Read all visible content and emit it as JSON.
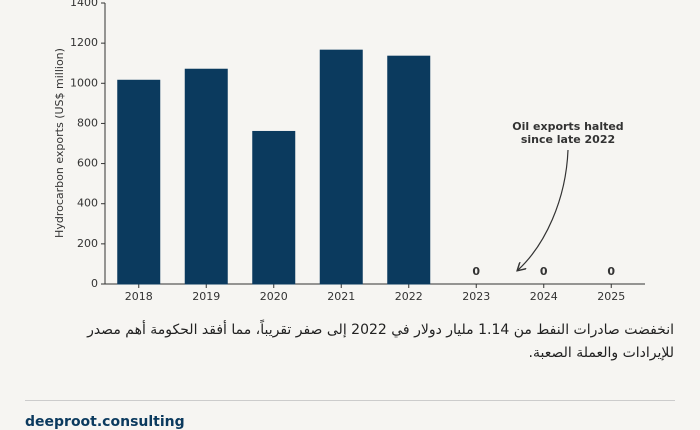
{
  "chart_data": {
    "type": "bar",
    "y_label": "Hydrocarbon exports (US$ million)",
    "categories": [
      "2018",
      "2019",
      "2020",
      "2021",
      "2022",
      "2023",
      "2024",
      "2025"
    ],
    "values": [
      1015,
      1070,
      760,
      1165,
      1135,
      0,
      0,
      0
    ],
    "colors": [
      "#0b3a5e",
      "#0b3a5e",
      "#0b3a5e",
      "#0b3a5e",
      "#0b3a5e",
      "#e8a84a",
      "#0b3a5e",
      "#0b3a5e"
    ],
    "ylim": [
      0,
      1400
    ],
    "yticks": [
      0,
      200,
      400,
      600,
      800,
      1000,
      1200,
      1400
    ],
    "grid": false,
    "annotation": [
      "Oil exports halted",
      "since late 2022"
    ]
  },
  "caption": "انخفضت صادرات النفط من 1.14 مليار دولار في 2022 إلى صفر تقريباً، مما أفقد الحكومة أهم مصدر للإيرادات والعملة الصعبة.",
  "footer": "deeproot.consulting"
}
